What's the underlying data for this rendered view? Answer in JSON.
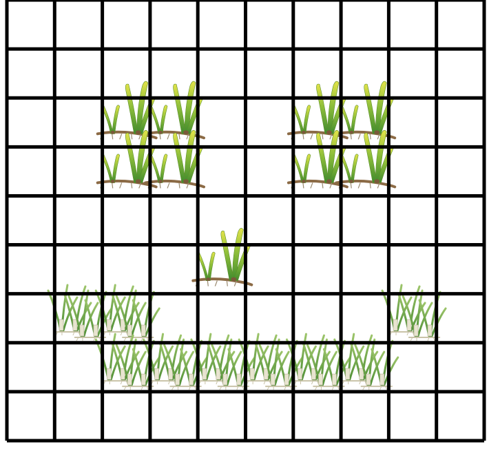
{
  "grid": {
    "columns": 10,
    "rows": 9,
    "line_color": "#000000",
    "background": "#ffffff"
  },
  "colors": {
    "seagrass_yellow": "#d7dd3a",
    "seagrass_green": "#5a9a2e",
    "rhizome_brown": "#8b6a45",
    "shoot_green": "#6aa84f",
    "root_white": "#e8e4d0"
  },
  "eelgrass_clusters": [
    {
      "name": "left-eye-cluster",
      "cells": [
        [
          2,
          2
        ],
        [
          3,
          2
        ],
        [
          2,
          3
        ],
        [
          3,
          3
        ]
      ]
    },
    {
      "name": "right-eye-cluster",
      "cells": [
        [
          6,
          2
        ],
        [
          7,
          2
        ],
        [
          6,
          3
        ],
        [
          7,
          3
        ]
      ]
    },
    {
      "name": "nose-cluster",
      "cells": [
        [
          4,
          5
        ]
      ]
    }
  ],
  "smile_shoots": [
    {
      "col": 1,
      "row": 6
    },
    {
      "col": 2,
      "row": 6
    },
    {
      "col": 2,
      "row": 7
    },
    {
      "col": 3,
      "row": 7
    },
    {
      "col": 4,
      "row": 7
    },
    {
      "col": 5,
      "row": 7
    },
    {
      "col": 6,
      "row": 7
    },
    {
      "col": 7,
      "row": 7
    },
    {
      "col": 8,
      "row": 6
    }
  ]
}
